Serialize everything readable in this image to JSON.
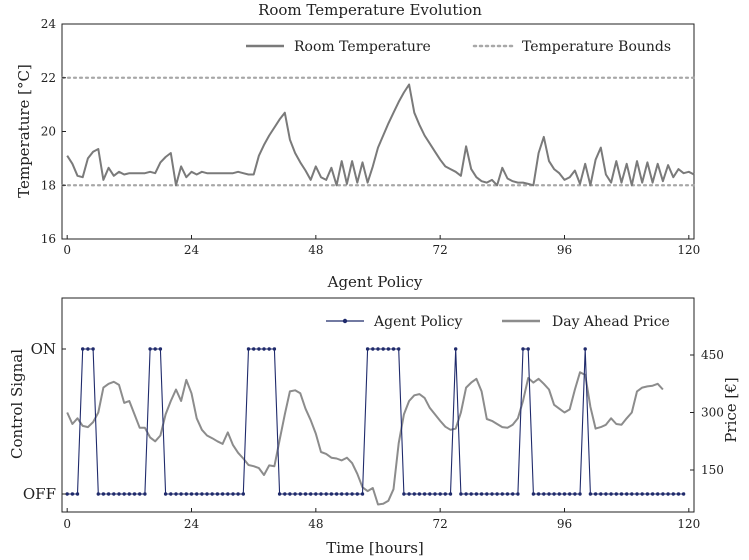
{
  "chart_data": [
    {
      "type": "line",
      "title": "Room Temperature Evolution",
      "xlabel": "",
      "ylabel": "Temperature [°C]",
      "xlim": [
        -1,
        121
      ],
      "ylim": [
        16,
        24
      ],
      "xticks": [
        "0",
        "24",
        "48",
        "72",
        "96",
        "120"
      ],
      "yticks": [
        "16",
        "18",
        "20",
        "22",
        "24"
      ],
      "legend_position": "top-right",
      "series": [
        {
          "name": "Room Temperature",
          "color": "#7a7a7a",
          "points": [
            [
              0,
              19.1
            ],
            [
              1,
              18.8
            ],
            [
              2,
              18.35
            ],
            [
              3,
              18.3
            ],
            [
              4,
              19.0
            ],
            [
              5,
              19.25
            ],
            [
              6,
              19.35
            ],
            [
              7,
              18.2
            ],
            [
              8,
              18.65
            ],
            [
              9,
              18.35
            ],
            [
              10,
              18.5
            ],
            [
              11,
              18.4
            ],
            [
              12,
              18.45
            ],
            [
              13,
              18.45
            ],
            [
              14,
              18.45
            ],
            [
              15,
              18.45
            ],
            [
              16,
              18.5
            ],
            [
              17,
              18.45
            ],
            [
              18,
              18.85
            ],
            [
              19,
              19.05
            ],
            [
              20,
              19.2
            ],
            [
              21,
              18.0
            ],
            [
              22,
              18.7
            ],
            [
              23,
              18.3
            ],
            [
              24,
              18.5
            ],
            [
              25,
              18.4
            ],
            [
              26,
              18.5
            ],
            [
              27,
              18.45
            ],
            [
              28,
              18.45
            ],
            [
              29,
              18.45
            ],
            [
              30,
              18.45
            ],
            [
              31,
              18.45
            ],
            [
              32,
              18.45
            ],
            [
              33,
              18.5
            ],
            [
              34,
              18.45
            ],
            [
              35,
              18.4
            ],
            [
              36,
              18.4
            ],
            [
              37,
              19.1
            ],
            [
              38,
              19.5
            ],
            [
              39,
              19.85
            ],
            [
              40,
              20.15
            ],
            [
              41,
              20.45
            ],
            [
              42,
              20.7
            ],
            [
              43,
              19.7
            ],
            [
              44,
              19.2
            ],
            [
              45,
              18.85
            ],
            [
              46,
              18.55
            ],
            [
              47,
              18.2
            ],
            [
              48,
              18.7
            ],
            [
              49,
              18.3
            ],
            [
              50,
              18.2
            ],
            [
              51,
              18.65
            ],
            [
              52,
              18.0
            ],
            [
              53,
              18.9
            ],
            [
              54,
              18.05
            ],
            [
              55,
              18.9
            ],
            [
              56,
              18.1
            ],
            [
              57,
              18.85
            ],
            [
              58,
              18.1
            ],
            [
              59,
              18.7
            ],
            [
              60,
              19.4
            ],
            [
              61,
              19.85
            ],
            [
              62,
              20.3
            ],
            [
              63,
              20.7
            ],
            [
              64,
              21.1
            ],
            [
              65,
              21.45
            ],
            [
              66,
              21.75
            ],
            [
              67,
              20.7
            ],
            [
              68,
              20.25
            ],
            [
              69,
              19.85
            ],
            [
              70,
              19.55
            ],
            [
              71,
              19.25
            ],
            [
              72,
              18.95
            ],
            [
              73,
              18.7
            ],
            [
              74,
              18.6
            ],
            [
              75,
              18.5
            ],
            [
              76,
              18.35
            ],
            [
              77,
              19.45
            ],
            [
              78,
              18.6
            ],
            [
              79,
              18.3
            ],
            [
              80,
              18.15
            ],
            [
              81,
              18.1
            ],
            [
              82,
              18.2
            ],
            [
              83,
              18.0
            ],
            [
              84,
              18.65
            ],
            [
              85,
              18.25
            ],
            [
              86,
              18.15
            ],
            [
              87,
              18.1
            ],
            [
              88,
              18.1
            ],
            [
              89,
              18.05
            ],
            [
              90,
              18.0
            ],
            [
              91,
              19.2
            ],
            [
              92,
              19.8
            ],
            [
              93,
              18.9
            ],
            [
              94,
              18.6
            ],
            [
              95,
              18.45
            ],
            [
              96,
              18.2
            ],
            [
              97,
              18.3
            ],
            [
              98,
              18.55
            ],
            [
              99,
              18.05
            ],
            [
              100,
              18.8
            ],
            [
              101,
              18.0
            ],
            [
              102,
              18.95
            ],
            [
              103,
              19.4
            ],
            [
              104,
              18.4
            ],
            [
              105,
              18.1
            ],
            [
              106,
              18.9
            ],
            [
              107,
              18.1
            ],
            [
              108,
              18.8
            ],
            [
              109,
              18.0
            ],
            [
              110,
              18.9
            ],
            [
              111,
              18.1
            ],
            [
              112,
              18.85
            ],
            [
              113,
              18.1
            ],
            [
              114,
              18.8
            ],
            [
              115,
              18.15
            ],
            [
              116,
              18.75
            ],
            [
              117,
              18.3
            ],
            [
              118,
              18.6
            ],
            [
              119,
              18.45
            ],
            [
              120,
              18.5
            ],
            [
              121,
              18.4
            ]
          ]
        },
        {
          "name": "Temperature Bounds",
          "color": "#a8a8a8",
          "style": "dotted",
          "hlines": [
            18,
            22
          ]
        }
      ]
    },
    {
      "type": "line",
      "title": "Agent Policy",
      "xlabel": "Time [hours]",
      "ylabel": "Control Signal",
      "ylabel_right": "Price [€]",
      "xlim": [
        -1,
        121
      ],
      "xticks": [
        "0",
        "24",
        "48",
        "72",
        "96",
        "120"
      ],
      "yticks_left": [
        "OFF",
        "ON"
      ],
      "yticks_right": [
        "150",
        "300",
        "450"
      ],
      "right_ylim": [
        50,
        600
      ],
      "legend_position": "top-right",
      "series": [
        {
          "name": "Agent Policy",
          "color": "#1f2a6b",
          "on_hours": [
            3,
            4,
            5,
            16,
            17,
            18,
            35,
            36,
            37,
            38,
            39,
            40,
            58,
            59,
            60,
            61,
            62,
            63,
            64,
            75,
            88,
            89,
            100
          ]
        },
        {
          "name": "Day Ahead Price",
          "color": "#8c8c8c",
          "axis": "right",
          "points": [
            [
              0,
              300
            ],
            [
              1,
              270
            ],
            [
              2,
              285
            ],
            [
              3,
              265
            ],
            [
              4,
              262
            ],
            [
              5,
              275
            ],
            [
              6,
              300
            ],
            [
              7,
              365
            ],
            [
              8,
              375
            ],
            [
              9,
              380
            ],
            [
              10,
              372
            ],
            [
              11,
              325
            ],
            [
              12,
              330
            ],
            [
              13,
              295
            ],
            [
              14,
              260
            ],
            [
              15,
              260
            ],
            [
              16,
              235
            ],
            [
              17,
              225
            ],
            [
              18,
              240
            ],
            [
              19,
              295
            ],
            [
              20,
              330
            ],
            [
              21,
              360
            ],
            [
              22,
              330
            ],
            [
              23,
              385
            ],
            [
              24,
              350
            ],
            [
              25,
              285
            ],
            [
              26,
              255
            ],
            [
              27,
              240
            ],
            [
              28,
              233
            ],
            [
              29,
              225
            ],
            [
              30,
              218
            ],
            [
              31,
              248
            ],
            [
              32,
              215
            ],
            [
              33,
              195
            ],
            [
              34,
              180
            ],
            [
              35,
              163
            ],
            [
              36,
              160
            ],
            [
              37,
              155
            ],
            [
              38,
              137
            ],
            [
              39,
              162
            ],
            [
              40,
              160
            ],
            [
              41,
              228
            ],
            [
              42,
              295
            ],
            [
              43,
              355
            ],
            [
              44,
              358
            ],
            [
              45,
              350
            ],
            [
              46,
              310
            ],
            [
              47,
              280
            ],
            [
              48,
              245
            ],
            [
              49,
              197
            ],
            [
              50,
              192
            ],
            [
              51,
              182
            ],
            [
              52,
              180
            ],
            [
              53,
              175
            ],
            [
              54,
              182
            ],
            [
              55,
              168
            ],
            [
              56,
              140
            ],
            [
              57,
              105
            ],
            [
              58,
              95
            ],
            [
              59,
              103
            ],
            [
              60,
              60
            ],
            [
              61,
              62
            ],
            [
              62,
              70
            ],
            [
              63,
              100
            ],
            [
              64,
              220
            ],
            [
              65,
              295
            ],
            [
              66,
              330
            ],
            [
              67,
              345
            ],
            [
              68,
              348
            ],
            [
              69,
              338
            ],
            [
              70,
              312
            ],
            [
              71,
              295
            ],
            [
              72,
              278
            ],
            [
              73,
              263
            ],
            [
              74,
              255
            ],
            [
              75,
              258
            ],
            [
              76,
              300
            ],
            [
              77,
              365
            ],
            [
              78,
              378
            ],
            [
              79,
              388
            ],
            [
              80,
              355
            ],
            [
              81,
              283
            ],
            [
              82,
              278
            ],
            [
              83,
              270
            ],
            [
              84,
              262
            ],
            [
              85,
              260
            ],
            [
              86,
              268
            ],
            [
              87,
              285
            ],
            [
              88,
              330
            ],
            [
              89,
              390
            ],
            [
              90,
              378
            ],
            [
              91,
              388
            ],
            [
              92,
              375
            ],
            [
              93,
              360
            ],
            [
              94,
              320
            ],
            [
              95,
              310
            ],
            [
              96,
              300
            ],
            [
              97,
              308
            ],
            [
              98,
              360
            ],
            [
              99,
              405
            ],
            [
              100,
              398
            ],
            [
              101,
              315
            ],
            [
              102,
              258
            ],
            [
              103,
              262
            ],
            [
              104,
              268
            ],
            [
              105,
              285
            ],
            [
              106,
              270
            ],
            [
              107,
              268
            ],
            [
              108,
              285
            ],
            [
              109,
              300
            ],
            [
              110,
              355
            ],
            [
              111,
              365
            ],
            [
              112,
              368
            ],
            [
              113,
              370
            ],
            [
              114,
              375
            ],
            [
              115,
              360
            ]
          ]
        }
      ]
    }
  ]
}
